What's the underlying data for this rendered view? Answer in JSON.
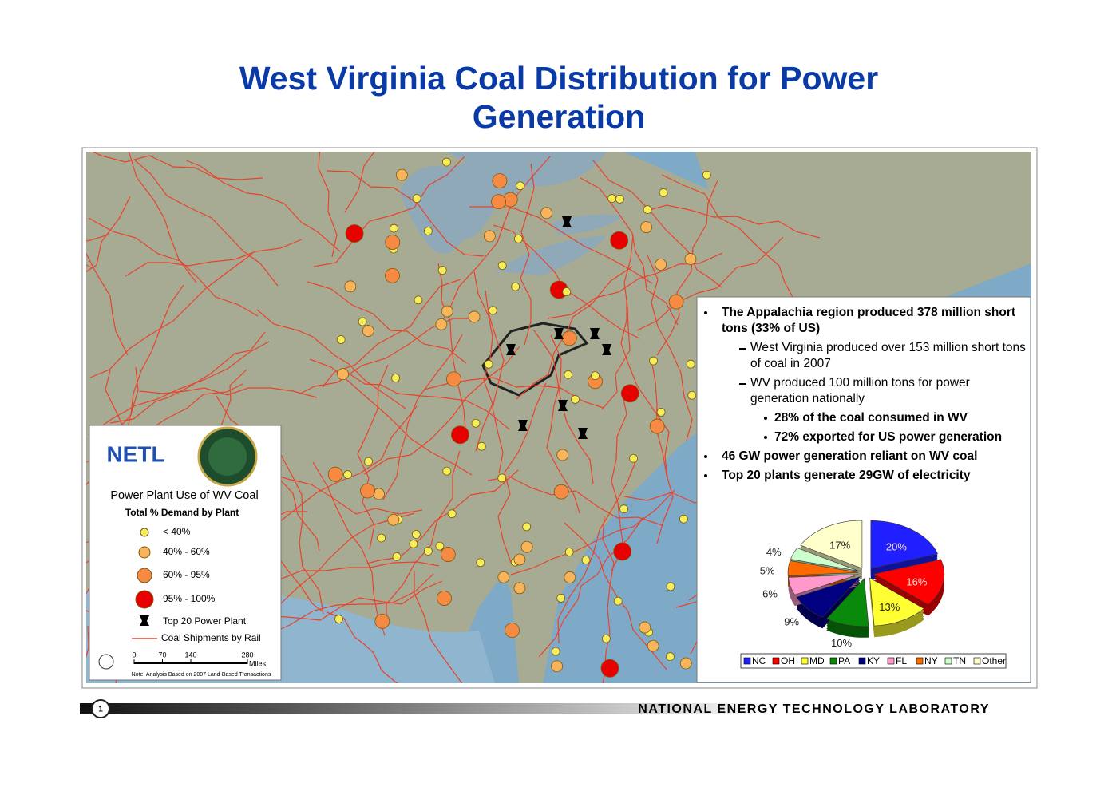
{
  "title": "West Virginia Coal Distribution for Power Generation",
  "map_legend": {
    "title": "Power Plant Use of WV Coal",
    "subtitle": "Total % Demand by Plant",
    "items": [
      "< 40%",
      "40% - 60%",
      "60% - 95%",
      "95% - 100%",
      "Top 20 Power Plant",
      "Coal Shipments by Rail"
    ],
    "scale_ticks": [
      0,
      70,
      140,
      280
    ],
    "scale_unit": "Miles",
    "note": "Note: Analysis Based on 2007 Land-Based Transactions",
    "logo": "NETL"
  },
  "bullets": [
    {
      "text": "The Appalachia region produced 378 million short tons (33% of US)",
      "level": 1,
      "bold": true
    },
    {
      "text": "West Virginia produced over 153 million short tons of coal in 2007",
      "level": 2,
      "bold": false
    },
    {
      "text": "WV produced 100 million tons for power generation nationally",
      "level": 2,
      "bold": false
    },
    {
      "text": "28% of the coal consumed in WV",
      "level": 3,
      "bold": true
    },
    {
      "text": "72% exported for US power generation",
      "level": 3,
      "bold": true
    },
    {
      "text": "46 GW power generation reliant on WV coal",
      "level": 1,
      "bold": true
    },
    {
      "text": "Top 20 plants generate 29GW of electricity",
      "level": 1,
      "bold": true
    }
  ],
  "chart_data": {
    "type": "pie",
    "categories": [
      "NC",
      "OH",
      "MD",
      "PA",
      "KY",
      "FL",
      "NY",
      "TN",
      "Other"
    ],
    "values": [
      20,
      16,
      13,
      10,
      9,
      6,
      5,
      4,
      17
    ],
    "value_labels": [
      "20%",
      "16%",
      "13%",
      "10%",
      "9%",
      "6%",
      "5%",
      "4%",
      "17%"
    ],
    "colors": [
      "#1f1fff",
      "#ff0000",
      "#ffff33",
      "#0a8a0a",
      "#000080",
      "#ff99cc",
      "#ff6a00",
      "#ccffcc",
      "#ffffcc"
    ]
  },
  "footer": {
    "page": "1",
    "org": "NATIONAL ENERGY TECHNOLOGY LABORATORY"
  }
}
